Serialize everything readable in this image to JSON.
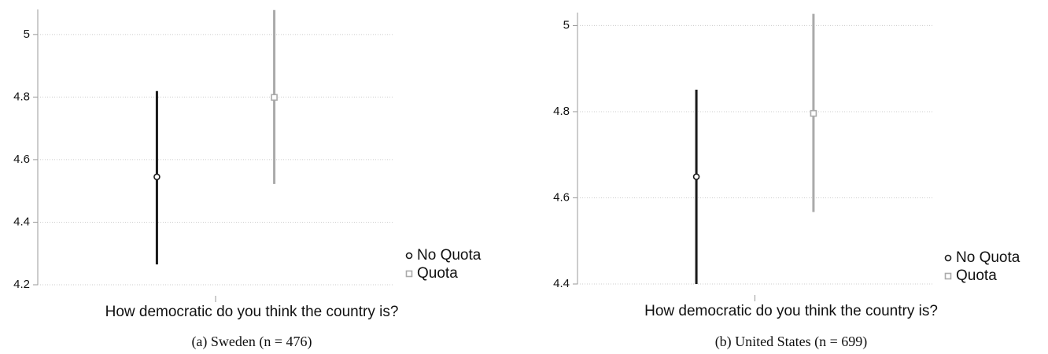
{
  "chart_data": [
    {
      "type": "errorbar",
      "caption": "(a) Sweden (n = 476)",
      "categories": [
        "How democratic do you think the country is?"
      ],
      "series": [
        {
          "name": "No Quota",
          "color": "#1a1a1a",
          "marker": "circle",
          "values": [
            4.545
          ],
          "ci_low": [
            4.265
          ],
          "ci_high": [
            4.819
          ]
        },
        {
          "name": "Quota",
          "color": "#aaaaaa",
          "marker": "square",
          "values": [
            4.799
          ],
          "ci_low": [
            4.522
          ],
          "ci_high": [
            5.078
          ]
        }
      ],
      "ylim": [
        4.2,
        5.08
      ],
      "yticks": [
        4.2,
        4.4,
        4.6,
        4.8,
        5
      ],
      "grid": true,
      "legend": "right"
    },
    {
      "type": "errorbar",
      "caption": "(b) United States (n = 699)",
      "categories": [
        "How democratic do you think the country is?"
      ],
      "series": [
        {
          "name": "No Quota",
          "color": "#1a1a1a",
          "marker": "circle",
          "values": [
            4.649
          ],
          "ci_low": [
            4.4
          ],
          "ci_high": [
            4.851
          ]
        },
        {
          "name": "Quota",
          "color": "#aaaaaa",
          "marker": "square",
          "values": [
            4.796
          ],
          "ci_low": [
            4.567
          ],
          "ci_high": [
            5.027
          ]
        }
      ],
      "ylim": [
        4.4,
        5.03
      ],
      "yticks": [
        4.4,
        4.6,
        4.8,
        5
      ],
      "grid": true,
      "legend": "right"
    }
  ]
}
